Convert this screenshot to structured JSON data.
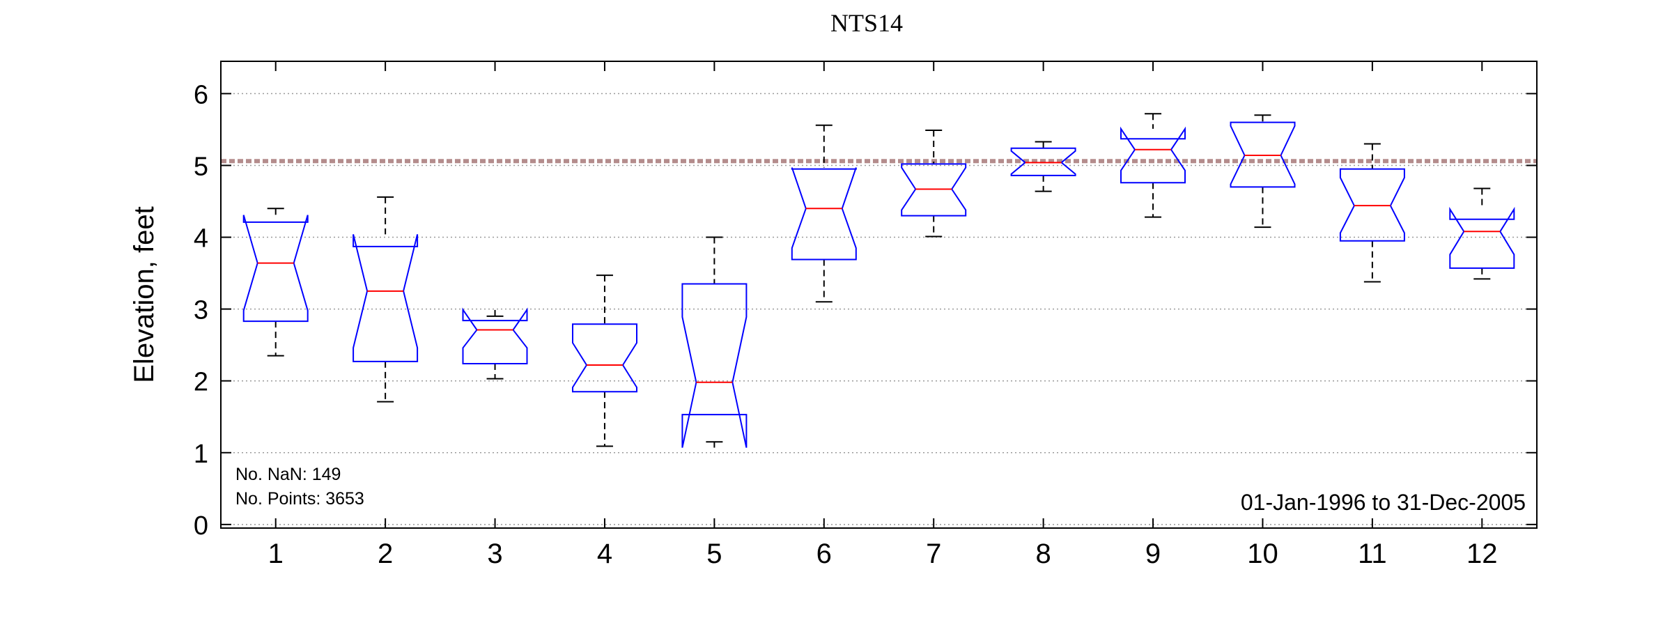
{
  "chart_data": {
    "type": "boxplot",
    "title": "NTS14",
    "xlabel": "",
    "ylabel": "Elevation, feet",
    "ylim": [
      -0.05,
      6.45
    ],
    "yticks": [
      0,
      1,
      2,
      3,
      4,
      5,
      6
    ],
    "categories": [
      "1",
      "2",
      "3",
      "4",
      "5",
      "6",
      "7",
      "8",
      "9",
      "10",
      "11",
      "12"
    ],
    "grid": "horizontal dotted",
    "reference_line": {
      "value": 5.06,
      "style": "dashed",
      "color": "#b48c8c"
    },
    "boxes": [
      {
        "month": "1",
        "whisker_low": 2.35,
        "q1": 2.83,
        "median": 3.64,
        "q3": 4.21,
        "whisker_high": 4.4,
        "notch_low": 2.98,
        "notch_high": 4.31
      },
      {
        "month": "2",
        "whisker_low": 1.71,
        "q1": 2.27,
        "median": 3.25,
        "q3": 3.87,
        "whisker_high": 4.56,
        "notch_low": 2.46,
        "notch_high": 4.04
      },
      {
        "month": "3",
        "whisker_low": 2.03,
        "q1": 2.24,
        "median": 2.71,
        "q3": 2.84,
        "whisker_high": 2.9,
        "notch_low": 2.46,
        "notch_high": 2.99
      },
      {
        "month": "4",
        "whisker_low": 1.09,
        "q1": 1.85,
        "median": 2.22,
        "q3": 2.79,
        "whisker_high": 3.47,
        "notch_low": 1.91,
        "notch_high": 2.53
      },
      {
        "month": "5",
        "whisker_low": 1.15,
        "q1": 1.53,
        "median": 1.98,
        "q3": 3.35,
        "whisker_high": 4.0,
        "notch_low": 1.07,
        "notch_high": 2.89
      },
      {
        "month": "6",
        "whisker_low": 3.1,
        "q1": 3.69,
        "median": 4.4,
        "q3": 4.95,
        "whisker_high": 5.56,
        "notch_low": 3.85,
        "notch_high": 4.97
      },
      {
        "month": "7",
        "whisker_low": 4.01,
        "q1": 4.3,
        "median": 4.67,
        "q3": 5.02,
        "whisker_high": 5.49,
        "notch_low": 4.38,
        "notch_high": 4.97
      },
      {
        "month": "8",
        "whisker_low": 4.64,
        "q1": 4.86,
        "median": 5.04,
        "q3": 5.24,
        "whisker_high": 5.33,
        "notch_low": 4.88,
        "notch_high": 5.2
      },
      {
        "month": "9",
        "whisker_low": 4.28,
        "q1": 4.76,
        "median": 5.22,
        "q3": 5.37,
        "whisker_high": 5.72,
        "notch_low": 4.93,
        "notch_high": 5.51
      },
      {
        "month": "10",
        "whisker_low": 4.14,
        "q1": 4.7,
        "median": 5.14,
        "q3": 5.6,
        "whisker_high": 5.7,
        "notch_low": 4.74,
        "notch_high": 5.55
      },
      {
        "month": "11",
        "whisker_low": 3.38,
        "q1": 3.95,
        "median": 4.44,
        "q3": 4.95,
        "whisker_high": 5.3,
        "notch_low": 4.06,
        "notch_high": 4.83
      },
      {
        "month": "12",
        "whisker_low": 3.42,
        "q1": 3.57,
        "median": 4.08,
        "q3": 4.25,
        "whisker_high": 4.68,
        "notch_low": 3.76,
        "notch_high": 4.39
      }
    ],
    "annotations": {
      "nan_count": "No. NaN: 149",
      "points_count": "No. Points: 3653",
      "date_range": "01-Jan-1996 to 31-Dec-2005"
    },
    "colors": {
      "box": "#0000ff",
      "median": "#ff0000",
      "whisker": "#000000",
      "grid": "#9a9a9a"
    }
  }
}
